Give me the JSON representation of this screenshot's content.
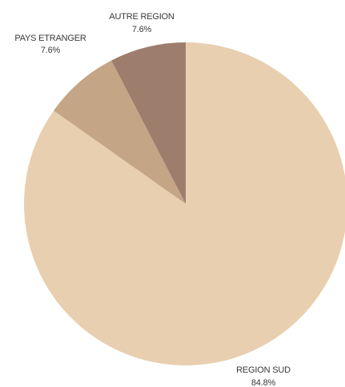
{
  "chart_data": {
    "type": "pie",
    "title": "",
    "start_angle_deg": 0,
    "direction": "clockwise",
    "slices": [
      {
        "label": "REGION SUD",
        "value": 84.8,
        "value_label": "84.8%",
        "color": "#e8cfb0"
      },
      {
        "label": "PAYS ETRANGER",
        "value": 7.6,
        "value_label": "7.6%",
        "color": "#c4a585"
      },
      {
        "label": "AUTRE REGION",
        "value": 7.6,
        "value_label": "7.6%",
        "color": "#9d7e6d"
      }
    ]
  }
}
